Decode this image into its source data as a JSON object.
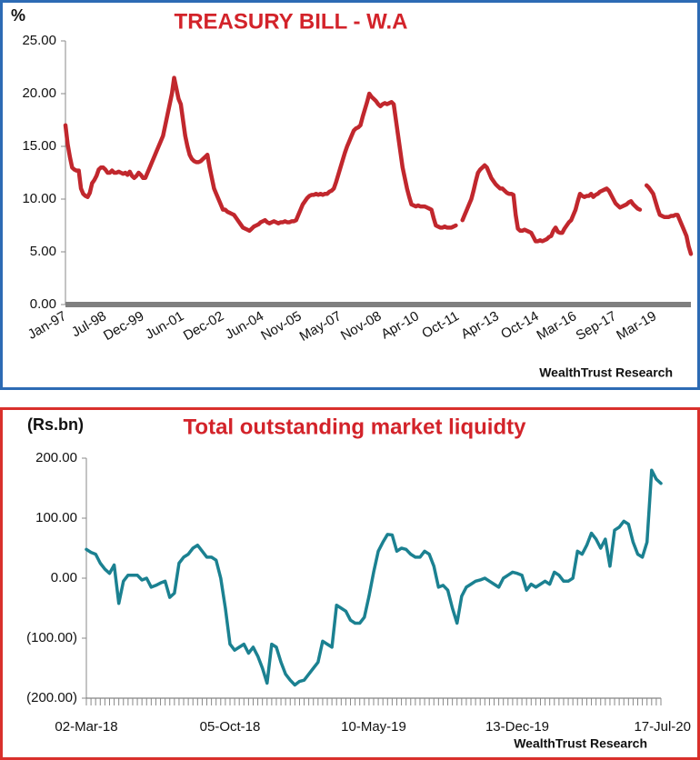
{
  "chart_data": [
    {
      "type": "line",
      "title": "TREASURY BILL - W.A",
      "y_unit": "%",
      "source": "WealthTrust Research",
      "color": "#c1272d",
      "ylim": [
        0,
        25
      ],
      "yticks": [
        {
          "value": 0,
          "label": "0.00"
        },
        {
          "value": 5,
          "label": "5.00"
        },
        {
          "value": 10,
          "label": "10.00"
        },
        {
          "value": 15,
          "label": "15.00"
        },
        {
          "value": 20,
          "label": "20.00"
        },
        {
          "value": 25,
          "label": "25.00"
        }
      ],
      "categories": [
        "Jan-97",
        null,
        null,
        null,
        null,
        null,
        null,
        null,
        null,
        null,
        null,
        null,
        null,
        null,
        null,
        null,
        null,
        null,
        "Jul-98",
        null,
        null,
        null,
        null,
        null,
        null,
        null,
        null,
        null,
        null,
        null,
        null,
        null,
        null,
        null,
        null,
        "Dec-99",
        null,
        null,
        null,
        null,
        null,
        null,
        null,
        null,
        null,
        null,
        null,
        null,
        null,
        null,
        null,
        null,
        null,
        "Jun-01",
        null,
        null,
        null,
        null,
        null,
        null,
        null,
        null,
        null,
        null,
        null,
        null,
        null,
        null,
        null,
        null,
        null,
        "Dec-02",
        null,
        null,
        null,
        null,
        null,
        null,
        null,
        null,
        null,
        null,
        null,
        null,
        null,
        null,
        null,
        null,
        null,
        "Jun-04",
        null,
        null,
        null,
        null,
        null,
        null,
        null,
        null,
        null,
        null,
        null,
        null,
        null,
        null,
        null,
        null,
        "Nov-05",
        null,
        null,
        null,
        null,
        null,
        null,
        null,
        null,
        null,
        null,
        null,
        null,
        null,
        null,
        null,
        null,
        null,
        "May-07",
        null,
        null,
        null,
        null,
        null,
        null,
        null,
        null,
        null,
        null,
        null,
        null,
        null,
        null,
        null,
        null,
        null,
        "Nov-08",
        null,
        null,
        null,
        null,
        null,
        null,
        null,
        null,
        null,
        null,
        null,
        null,
        null,
        null,
        null,
        null,
        "Apr-10",
        null,
        null,
        null,
        null,
        null,
        null,
        null,
        null,
        null,
        null,
        null,
        null,
        null,
        null,
        null,
        null,
        null,
        "Oct-11",
        null,
        null,
        null,
        null,
        null,
        null,
        null,
        null,
        null,
        null,
        null,
        null,
        null,
        null,
        null,
        null,
        null,
        "Apr-13",
        null,
        null,
        null,
        null,
        null,
        null,
        null,
        null,
        null,
        null,
        null,
        null,
        null,
        null,
        null,
        null,
        null,
        "Oct-14",
        null,
        null,
        null,
        null,
        null,
        null,
        null,
        null,
        null,
        null,
        null,
        null,
        null,
        null,
        null,
        null,
        "Mar-16",
        null,
        null,
        null,
        null,
        null,
        null,
        null,
        null,
        null,
        null,
        null,
        null,
        null,
        null,
        null,
        null,
        null,
        "Sep-17",
        null,
        null,
        null,
        null,
        null,
        null,
        null,
        null,
        null,
        null,
        null,
        null,
        null,
        null,
        null,
        null,
        null,
        "Mar-19",
        null,
        null,
        null,
        null,
        null,
        null,
        null,
        null,
        null,
        null,
        null,
        null,
        null,
        null,
        null,
        null
      ],
      "values": [
        17,
        15.2,
        14,
        13,
        12.8,
        12.7,
        12.7,
        11,
        10.5,
        10.3,
        10.2,
        10.6,
        11.5,
        11.8,
        12.2,
        12.8,
        13,
        13,
        12.8,
        12.5,
        12.5,
        12.7,
        12.5,
        12.5,
        12.6,
        12.5,
        12.4,
        12.5,
        12.3,
        12.6,
        12.2,
        12,
        12.2,
        12.5,
        12.3,
        12,
        12,
        12.5,
        13,
        13.5,
        14,
        14.5,
        15,
        15.5,
        16,
        17,
        18,
        19,
        20,
        21.5,
        20.5,
        19.5,
        19,
        17.5,
        16,
        15,
        14.2,
        13.8,
        13.6,
        13.5,
        13.5,
        13.6,
        13.8,
        14,
        14.2,
        13,
        12,
        11,
        10.5,
        10,
        9.5,
        9,
        9,
        8.8,
        8.7,
        8.6,
        8.5,
        8.2,
        7.9,
        7.6,
        7.3,
        7.2,
        7.1,
        7,
        7.2,
        7.4,
        7.5,
        7.6,
        7.8,
        7.9,
        8,
        7.8,
        7.7,
        7.8,
        7.9,
        7.8,
        7.7,
        7.8,
        7.8,
        7.9,
        7.8,
        7.8,
        7.9,
        7.9,
        8,
        8.5,
        9,
        9.5,
        9.8,
        10.1,
        10.3,
        10.4,
        10.4,
        10.5,
        10.4,
        10.5,
        10.4,
        10.5,
        10.5,
        10.7,
        10.8,
        11,
        11.6,
        12.3,
        13,
        13.7,
        14.4,
        15,
        15.5,
        16,
        16.5,
        16.7,
        16.8,
        17,
        17.8,
        18.5,
        19.2,
        20,
        19.7,
        19.5,
        19.3,
        19,
        18.8,
        19,
        19.1,
        19,
        19.1,
        19.2,
        19,
        17.5,
        16,
        14.5,
        13,
        12,
        11,
        10.2,
        9.5,
        9.4,
        9.3,
        9.4,
        9.3,
        9.3,
        9.3,
        9.2,
        9.1,
        9,
        8.2,
        7.5,
        7.4,
        7.3,
        7.3,
        7.4,
        7.3,
        7.3,
        7.3,
        7.4,
        7.5,
        null,
        null,
        8,
        8.5,
        9,
        9.5,
        10,
        10.8,
        11.7,
        12.5,
        12.8,
        13,
        13.2,
        13,
        12.5,
        12,
        11.7,
        11.4,
        11.2,
        11,
        11,
        10.8,
        10.6,
        10.5,
        10.5,
        10.4,
        8.5,
        7.2,
        7,
        7,
        7.1,
        7,
        6.9,
        6.8,
        6.4,
        6,
        6,
        6.1,
        6,
        6.1,
        6.2,
        6.4,
        6.5,
        7,
        7.3,
        6.9,
        6.8,
        6.8,
        7.2,
        7.5,
        7.8,
        8,
        8.5,
        9,
        9.8,
        10.5,
        10.3,
        10.2,
        10.3,
        10.3,
        10.5,
        10.2,
        10.4,
        10.5,
        10.7,
        10.8,
        10.9,
        11,
        10.8,
        10.4,
        10,
        9.6,
        9.4,
        9.2,
        9.3,
        9.4,
        9.5,
        9.7,
        9.8,
        9.5,
        9.3,
        9.1,
        9,
        null,
        null,
        11.3,
        11.1,
        10.8,
        10.5,
        9.8,
        9.1,
        8.5,
        8.4,
        8.3,
        8.3,
        8.3,
        8.4,
        8.4,
        8.5,
        8.5,
        8,
        7.5,
        7,
        6.5,
        5.5,
        4.8
      ]
    },
    {
      "type": "line",
      "title": "Total outstanding market liquidty",
      "y_unit": "(Rs.bn)",
      "source": "WealthTrust Research",
      "color": "#1b8191",
      "ylim": [
        -200,
        200
      ],
      "yticks": [
        {
          "value": -200,
          "label": "(200.00)"
        },
        {
          "value": -100,
          "label": "(100.00)"
        },
        {
          "value": 0,
          "label": "0.00"
        },
        {
          "value": 100,
          "label": "100.00"
        },
        {
          "value": 200,
          "label": "200.00"
        }
      ],
      "categories": [
        "02-Mar-18",
        null,
        null,
        null,
        null,
        null,
        null,
        null,
        null,
        null,
        null,
        null,
        null,
        null,
        null,
        null,
        null,
        null,
        null,
        null,
        null,
        null,
        null,
        null,
        null,
        null,
        null,
        null,
        null,
        null,
        null,
        "05-Oct-18",
        null,
        null,
        null,
        null,
        null,
        null,
        null,
        null,
        null,
        null,
        null,
        null,
        null,
        null,
        null,
        null,
        null,
        null,
        null,
        null,
        null,
        null,
        null,
        null,
        null,
        null,
        null,
        null,
        null,
        null,
        "10-May-19",
        null,
        null,
        null,
        null,
        null,
        null,
        null,
        null,
        null,
        null,
        null,
        null,
        null,
        null,
        null,
        null,
        null,
        null,
        null,
        null,
        null,
        null,
        null,
        null,
        null,
        null,
        null,
        null,
        null,
        null,
        "13-Dec-19",
        null,
        null,
        null,
        null,
        null,
        null,
        null,
        null,
        null,
        null,
        null,
        null,
        null,
        null,
        null,
        null,
        null,
        null,
        null,
        null,
        null,
        null,
        null,
        null,
        null,
        null,
        null,
        null,
        null,
        null,
        "17-Jul-20"
      ],
      "values": [
        48,
        43,
        40,
        25,
        15,
        8,
        22,
        -42,
        -5,
        5,
        5,
        5,
        -3,
        0,
        -15,
        -12,
        -8,
        -5,
        -32,
        -25,
        25,
        35,
        40,
        50,
        55,
        45,
        35,
        35,
        30,
        0,
        -50,
        -110,
        -120,
        -115,
        -110,
        -125,
        -115,
        -130,
        -150,
        -175,
        -110,
        -115,
        -140,
        -160,
        -170,
        -178,
        -172,
        -170,
        -160,
        -150,
        -140,
        -105,
        -110,
        -115,
        -45,
        -50,
        -55,
        -70,
        -75,
        -75,
        -65,
        -30,
        10,
        45,
        60,
        73,
        72,
        45,
        50,
        48,
        40,
        35,
        35,
        45,
        40,
        20,
        -15,
        -12,
        -20,
        -50,
        -75,
        -30,
        -15,
        -10,
        -5,
        -3,
        0,
        -5,
        -10,
        -15,
        0,
        5,
        10,
        8,
        5,
        -20,
        -10,
        -15,
        -10,
        -5,
        -10,
        10,
        5,
        -5,
        -5,
        0,
        45,
        40,
        55,
        75,
        65,
        50,
        65,
        20,
        80,
        85,
        95,
        90,
        60,
        40,
        35,
        60,
        180,
        165,
        158
      ]
    }
  ]
}
